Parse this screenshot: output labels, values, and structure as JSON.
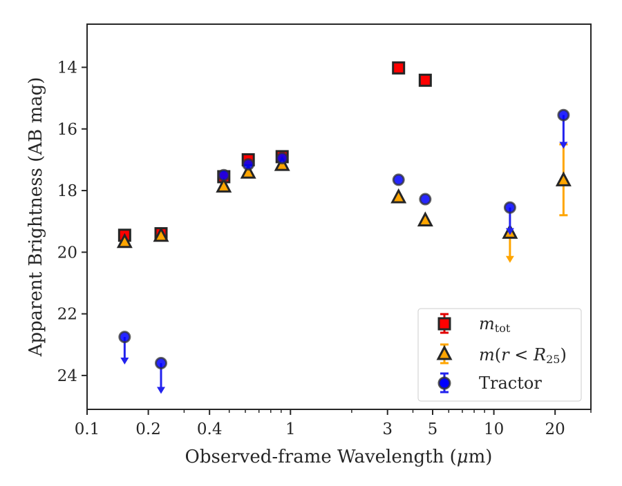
{
  "chart_data": {
    "type": "scatter",
    "xlabel": "Observed-frame Wavelength (",
    "xlabel_mu": "μ",
    "xlabel_unit_tail": "m)",
    "ylabel": "Apparent Brightness (AB mag)",
    "x_scale": "log",
    "xlim": [
      0.1,
      30
    ],
    "ylim": [
      25.1,
      12.6
    ],
    "y_inverted": true,
    "grid": false,
    "legend_position": "lower-right",
    "x_ticks": [
      {
        "value": 0.1,
        "label": "0.1"
      },
      {
        "value": 0.2,
        "label": "0.2"
      },
      {
        "value": 0.4,
        "label": "0.4"
      },
      {
        "value": 1,
        "label": "1"
      },
      {
        "value": 3,
        "label": "3"
      },
      {
        "value": 5,
        "label": "5"
      },
      {
        "value": 10,
        "label": "10"
      },
      {
        "value": 20,
        "label": "20"
      }
    ],
    "x_minor_ticks": [
      0.3,
      0.5,
      0.6,
      0.7,
      0.8,
      0.9,
      2,
      4,
      6,
      7,
      8,
      9,
      30
    ],
    "y_ticks": [
      {
        "value": 14,
        "label": "14"
      },
      {
        "value": 16,
        "label": "16"
      },
      {
        "value": 18,
        "label": "18"
      },
      {
        "value": 20,
        "label": "20"
      },
      {
        "value": 22,
        "label": "22"
      },
      {
        "value": 24,
        "label": "24"
      }
    ],
    "series": [
      {
        "key": "m_tot",
        "label_main": "m",
        "label_sub": "tot",
        "marker": "square",
        "color": "#ff0000",
        "error_color": "#e00000",
        "points": [
          {
            "x": 0.153,
            "y": 19.45
          },
          {
            "x": 0.231,
            "y": 19.4
          },
          {
            "x": 0.47,
            "y": 17.55
          },
          {
            "x": 0.62,
            "y": 17.0
          },
          {
            "x": 0.91,
            "y": 16.9
          },
          {
            "x": 3.4,
            "y": 14.02
          },
          {
            "x": 4.6,
            "y": 14.42
          }
        ]
      },
      {
        "key": "m_r25",
        "label_main": "m",
        "label_paren_open": "(",
        "label_r": "r",
        "label_lt": " < ",
        "label_R": "R",
        "label_R_sub": "25",
        "label_paren_close": ")",
        "marker": "triangle",
        "color": "#ffa500",
        "error_color": "#ffa500",
        "points": [
          {
            "x": 0.153,
            "y": 19.65
          },
          {
            "x": 0.231,
            "y": 19.45
          },
          {
            "x": 0.47,
            "y": 17.85
          },
          {
            "x": 0.62,
            "y": 17.4
          },
          {
            "x": 0.91,
            "y": 17.15
          },
          {
            "x": 3.4,
            "y": 18.2
          },
          {
            "x": 4.6,
            "y": 18.95
          },
          {
            "x": 12.0,
            "y": 19.35,
            "upper_limit_to": 20.3
          },
          {
            "x": 22.0,
            "y": 17.65,
            "err_low": 16.5,
            "err_high": 18.8
          }
        ]
      },
      {
        "key": "tractor",
        "label": "Tractor",
        "marker": "circle",
        "color": "#0000ff",
        "error_color": "#2222ee",
        "points": [
          {
            "x": 0.153,
            "y": 22.75,
            "upper_limit_to": 23.6
          },
          {
            "x": 0.231,
            "y": 23.6,
            "upper_limit_to": 24.55
          },
          {
            "x": 0.47,
            "y": 17.5
          },
          {
            "x": 0.62,
            "y": 17.15
          },
          {
            "x": 0.91,
            "y": 16.95
          },
          {
            "x": 3.4,
            "y": 17.65
          },
          {
            "x": 4.6,
            "y": 18.28
          },
          {
            "x": 12.0,
            "y": 18.55,
            "upper_limit_to": 19.4
          },
          {
            "x": 22.0,
            "y": 15.55,
            "upper_limit_to": 16.6
          }
        ]
      }
    ]
  }
}
